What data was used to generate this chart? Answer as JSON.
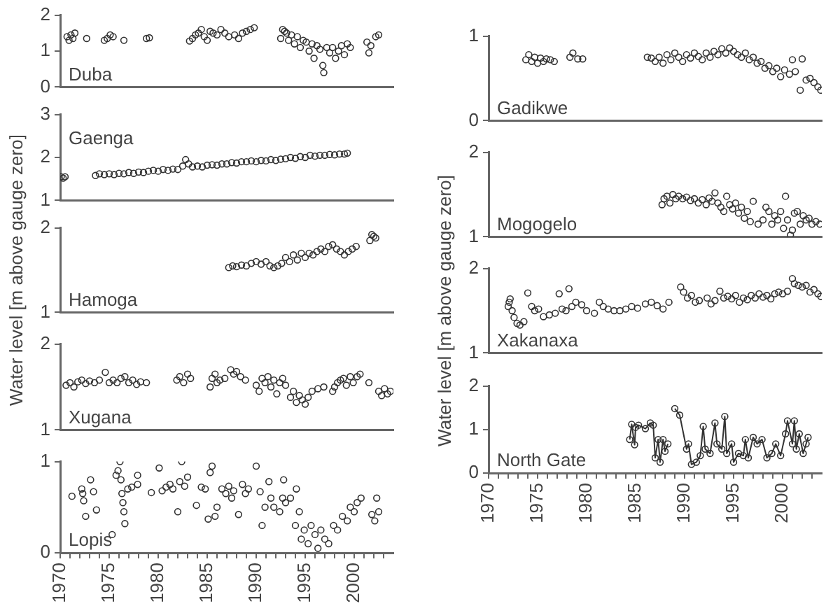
{
  "chart_data": [
    {
      "type": "scatter",
      "title": "Duba",
      "marker": "circle",
      "color": "#333333",
      "xlim": [
        1970,
        2004
      ],
      "ylim": [
        0,
        2
      ],
      "yticks": [
        0,
        1,
        2
      ],
      "tick_labels": "y",
      "x": [
        1970.7,
        1970.9,
        1971.1,
        1971.3,
        1971.5,
        1972.7,
        1974.5,
        1974.8,
        1975.1,
        1975.4,
        1976.5,
        1978.8,
        1979.1,
        1983.2,
        1983.5,
        1983.8,
        1984.1,
        1984.4,
        1984.7,
        1985,
        1985.3,
        1985.6,
        1986,
        1986.4,
        1986.8,
        1987.2,
        1987.8,
        1988.2,
        1988.6,
        1989,
        1989.4,
        1989.8,
        1992.5,
        1992.7,
        1992.9,
        1993.1,
        1993.3,
        1993.6,
        1993.9,
        1994.2,
        1994.5,
        1994.8,
        1995.1,
        1995.4,
        1995.7,
        1995.9,
        1996.2,
        1996.5,
        1996.8,
        1996.9,
        1997.2,
        1997.5,
        1997.8,
        1998.1,
        1998.4,
        1998.7,
        1999,
        1999.3,
        1999.6,
        2001.3,
        2001.5,
        2001.7,
        2002.2,
        2002.5
      ],
      "values": [
        1.4,
        1.3,
        1.45,
        1.35,
        1.5,
        1.35,
        1.3,
        1.35,
        1.45,
        1.4,
        1.3,
        1.35,
        1.37,
        1.28,
        1.35,
        1.45,
        1.5,
        1.6,
        1.4,
        1.3,
        1.55,
        1.5,
        1.45,
        1.6,
        1.5,
        1.4,
        1.45,
        1.35,
        1.5,
        1.55,
        1.6,
        1.65,
        1.35,
        1.6,
        1.55,
        1.5,
        1.3,
        1.45,
        1.2,
        1.4,
        1.1,
        1.3,
        1.25,
        1.0,
        1.2,
        0.8,
        1.15,
        1.05,
        0.6,
        0.4,
        1.1,
        0.95,
        1.1,
        0.8,
        1.0,
        1.15,
        0.9,
        1.2,
        1.1,
        1.25,
        0.95,
        1.15,
        1.4,
        1.45
      ]
    },
    {
      "type": "scatter",
      "title": "Gaenga",
      "marker": "circle",
      "color": "#333333",
      "xlim": [
        1970,
        2004
      ],
      "ylim": [
        1,
        3
      ],
      "yticks": [
        1,
        2,
        3
      ],
      "tick_labels": "y",
      "x": [
        1970.1,
        1970.3,
        1970.5,
        1973.6,
        1974,
        1974.5,
        1975,
        1975.5,
        1976,
        1976.5,
        1977,
        1977.5,
        1978,
        1978.5,
        1979,
        1979.5,
        1980,
        1980.5,
        1981,
        1981.5,
        1982,
        1982.5,
        1982.8,
        1983.1,
        1983.5,
        1984,
        1984.5,
        1985,
        1985.5,
        1986,
        1986.5,
        1987,
        1987.5,
        1988,
        1988.5,
        1989,
        1989.5,
        1990,
        1990.5,
        1991,
        1991.5,
        1992,
        1992.5,
        1993,
        1993.5,
        1994,
        1994.5,
        1995,
        1995.5,
        1996,
        1996.5,
        1997,
        1997.5,
        1998,
        1998.5,
        1999,
        1999.3
      ],
      "values": [
        1.55,
        1.52,
        1.55,
        1.58,
        1.62,
        1.6,
        1.62,
        1.6,
        1.63,
        1.62,
        1.65,
        1.63,
        1.66,
        1.65,
        1.68,
        1.7,
        1.68,
        1.72,
        1.7,
        1.73,
        1.72,
        1.8,
        1.95,
        1.85,
        1.78,
        1.8,
        1.78,
        1.82,
        1.83,
        1.82,
        1.85,
        1.85,
        1.88,
        1.87,
        1.9,
        1.9,
        1.92,
        1.9,
        1.93,
        1.92,
        1.95,
        1.93,
        1.96,
        1.97,
        2.0,
        1.98,
        2.02,
        2.0,
        2.05,
        2.03,
        2.05,
        2.05,
        2.07,
        2.06,
        2.08,
        2.08,
        2.1
      ]
    },
    {
      "type": "scatter",
      "title": "Hamoga",
      "ylabel": "Water level [m above gauge zero]",
      "marker": "circle",
      "color": "#333333",
      "xlim": [
        1970,
        2004
      ],
      "ylim": [
        1,
        2
      ],
      "yticks": [
        1,
        2
      ],
      "tick_labels": "y",
      "x": [
        1987.2,
        1987.6,
        1988,
        1988.5,
        1989,
        1989.5,
        1990,
        1990.5,
        1991,
        1991.4,
        1991.8,
        1992.2,
        1992.6,
        1993,
        1993.4,
        1993.8,
        1994.2,
        1994.6,
        1995,
        1995.4,
        1995.8,
        1996.2,
        1996.6,
        1997,
        1997.4,
        1997.8,
        1998.2,
        1998.6,
        1999,
        1999.4,
        1999.8,
        2000.2,
        2001.6,
        2001.8,
        2002,
        2002.2
      ],
      "values": [
        1.53,
        1.55,
        1.54,
        1.56,
        1.55,
        1.58,
        1.6,
        1.57,
        1.6,
        1.55,
        1.53,
        1.55,
        1.58,
        1.65,
        1.6,
        1.68,
        1.62,
        1.7,
        1.65,
        1.7,
        1.68,
        1.72,
        1.75,
        1.72,
        1.78,
        1.8,
        1.75,
        1.72,
        1.68,
        1.72,
        1.75,
        1.78,
        1.85,
        1.92,
        1.9,
        1.88
      ]
    },
    {
      "type": "scatter",
      "title": "Xugana",
      "marker": "circle",
      "color": "#333333",
      "xlim": [
        1970,
        2004
      ],
      "ylim": [
        1,
        2
      ],
      "yticks": [
        1,
        2
      ],
      "tick_labels": "y",
      "x": [
        1970.6,
        1971,
        1971.4,
        1971.8,
        1972.2,
        1972.6,
        1973,
        1973.5,
        1974,
        1974.6,
        1975,
        1975.4,
        1975.8,
        1976.2,
        1976.6,
        1977,
        1977.4,
        1977.8,
        1978.2,
        1978.8,
        1981.9,
        1982.2,
        1982.6,
        1983,
        1983.3,
        1985.3,
        1985.5,
        1985.8,
        1986,
        1986.3,
        1986.8,
        1987.4,
        1987.7,
        1988,
        1988.4,
        1988.9,
        1990,
        1990.3,
        1990.6,
        1990.9,
        1991.2,
        1991.5,
        1991.8,
        1992.1,
        1992.4,
        1992.7,
        1993,
        1993.5,
        1993.8,
        1994.1,
        1994.4,
        1994.7,
        1995,
        1995.3,
        1995.7,
        1996.3,
        1996.9,
        1997.8,
        1998,
        1998.3,
        1998.6,
        1998.9,
        1999.2,
        1999.6,
        1999.9,
        2000.3,
        2000.6,
        2001.5,
        2002.5,
        2002.8,
        2003.1,
        2003.4,
        2003.7
      ],
      "values": [
        1.52,
        1.55,
        1.5,
        1.56,
        1.58,
        1.54,
        1.57,
        1.55,
        1.58,
        1.67,
        1.55,
        1.58,
        1.55,
        1.6,
        1.62,
        1.55,
        1.58,
        1.53,
        1.56,
        1.55,
        1.58,
        1.62,
        1.55,
        1.65,
        1.6,
        1.5,
        1.6,
        1.65,
        1.55,
        1.58,
        1.6,
        1.7,
        1.65,
        1.68,
        1.62,
        1.58,
        1.52,
        1.45,
        1.6,
        1.55,
        1.62,
        1.5,
        1.58,
        1.42,
        1.55,
        1.6,
        1.52,
        1.38,
        1.45,
        1.32,
        1.4,
        1.35,
        1.3,
        1.38,
        1.45,
        1.48,
        1.5,
        1.45,
        1.5,
        1.55,
        1.58,
        1.6,
        1.52,
        1.62,
        1.55,
        1.62,
        1.65,
        1.55,
        1.45,
        1.4,
        1.48,
        1.42,
        1.45
      ]
    },
    {
      "type": "scatter",
      "title": "Lopis",
      "marker": "circle",
      "color": "#333333",
      "xlim": [
        1970,
        2004
      ],
      "ylim": [
        0,
        1
      ],
      "yticks": [
        0,
        1
      ],
      "xticks": [
        1970,
        {
          "value": 1971,
          "label": null
        },
        {
          "value": 1972,
          "label": null
        },
        {
          "value": 1973,
          "label": null
        },
        {
          "value": 1974,
          "label": null
        },
        1975,
        {
          "value": 1976,
          "label": null
        },
        {
          "value": 1977,
          "label": null
        },
        {
          "value": 1978,
          "label": null
        },
        {
          "value": 1979,
          "label": null
        },
        1980,
        {
          "value": 1981,
          "label": null
        },
        {
          "value": 1982,
          "label": null
        },
        {
          "value": 1983,
          "label": null
        },
        {
          "value": 1984,
          "label": null
        },
        1985,
        {
          "value": 1986,
          "label": null
        },
        {
          "value": 1987,
          "label": null
        },
        {
          "value": 1988,
          "label": null
        },
        {
          "value": 1989,
          "label": null
        },
        1990,
        {
          "value": 1991,
          "label": null
        },
        {
          "value": 1992,
          "label": null
        },
        {
          "value": 1993,
          "label": null
        },
        {
          "value": 1994,
          "label": null
        },
        1995,
        {
          "value": 1996,
          "label": null
        },
        {
          "value": 1997,
          "label": null
        },
        {
          "value": 1998,
          "label": null
        },
        {
          "value": 1999,
          "label": null
        },
        2000,
        {
          "value": 2001,
          "label": null
        },
        {
          "value": 2002,
          "label": null
        },
        {
          "value": 2003,
          "label": null
        }
      ],
      "x": [
        1971.2,
        1972.2,
        1972.3,
        1972.4,
        1972.6,
        1973.1,
        1973.4,
        1973.7,
        1975.3,
        1975.7,
        1975.9,
        1976.1,
        1976.2,
        1976.3,
        1976.4,
        1976.5,
        1976.6,
        1976.9,
        1977.3,
        1977.9,
        1977.9,
        1979.3,
        1980.1,
        1980.4,
        1980.8,
        1981.2,
        1981.5,
        1982,
        1982.2,
        1982.4,
        1982.7,
        1983,
        1983.9,
        1984.4,
        1984.8,
        1985.1,
        1985.3,
        1985.5,
        1985.8,
        1986,
        1986.5,
        1986.9,
        1987.2,
        1987.5,
        1987.7,
        1988.2,
        1988.6,
        1988.9,
        1989.2,
        1990,
        1990.4,
        1990.6,
        1990.9,
        1991.3,
        1991.5,
        1991.8,
        1992.4,
        1992.7,
        1992.8,
        1993,
        1993.5,
        1994,
        1994.1,
        1994.4,
        1994.6,
        1994.9,
        1995.3,
        1995.6,
        1996,
        1996.3,
        1996.6,
        1997,
        1997.4,
        1997.9,
        1998.3,
        1998.8,
        1999.3,
        1999.6,
        2000,
        2000.3,
        2000.7,
        2001.8,
        2002.1,
        2002.3,
        2002.5
      ],
      "values": [
        0.62,
        0.7,
        0.65,
        0.57,
        0.4,
        0.8,
        0.67,
        0.47,
        0.2,
        0.85,
        0.9,
        1.0,
        0.8,
        0.65,
        0.55,
        0.45,
        0.32,
        0.7,
        0.72,
        0.85,
        0.75,
        0.66,
        0.93,
        0.68,
        0.72,
        0.75,
        0.7,
        0.45,
        0.78,
        1.0,
        0.73,
        0.83,
        0.52,
        0.72,
        0.7,
        0.37,
        0.88,
        0.95,
        0.4,
        0.5,
        0.7,
        0.65,
        0.73,
        0.6,
        0.68,
        0.42,
        0.75,
        0.65,
        0.7,
        0.95,
        0.67,
        0.3,
        0.5,
        0.78,
        0.6,
        0.5,
        0.45,
        0.6,
        0.8,
        0.55,
        0.6,
        0.3,
        0.7,
        0.45,
        0.15,
        0.25,
        0.1,
        0.3,
        0.2,
        0.05,
        0.25,
        0.15,
        0.1,
        0.3,
        0.25,
        0.4,
        0.35,
        0.5,
        0.45,
        0.55,
        0.6,
        0.42,
        0.35,
        0.6,
        0.45
      ]
    },
    {
      "type": "scatter",
      "title": "Gadikwe",
      "marker": "circle",
      "color": "#333333",
      "xlim": [
        1970,
        2004
      ],
      "ylim": [
        0,
        1
      ],
      "yticks": [
        0,
        1
      ],
      "tick_labels": "y",
      "x": [
        1973.8,
        1974.1,
        1974.4,
        1974.7,
        1975,
        1975.3,
        1975.6,
        1975.9,
        1976.3,
        1976.7,
        1978.3,
        1978.6,
        1979.1,
        1979.6,
        1986.2,
        1986.6,
        1987,
        1987.4,
        1987.8,
        1988.2,
        1988.6,
        1989,
        1989.4,
        1989.8,
        1990.2,
        1990.6,
        1991,
        1991.4,
        1991.8,
        1992.2,
        1992.6,
        1993,
        1993.4,
        1993.8,
        1994.2,
        1994.6,
        1995,
        1995.4,
        1995.8,
        1996.2,
        1996.6,
        1997,
        1997.4,
        1997.8,
        1998.2,
        1998.6,
        1999,
        1999.4,
        1999.8,
        2000.2,
        2000.7,
        2001,
        2001.3,
        2001.8,
        2002,
        2002.4,
        2002.8,
        2003.2,
        2003.6,
        2003.9
      ],
      "values": [
        0.72,
        0.78,
        0.7,
        0.75,
        0.68,
        0.74,
        0.7,
        0.73,
        0.72,
        0.7,
        0.75,
        0.8,
        0.73,
        0.73,
        0.75,
        0.74,
        0.7,
        0.75,
        0.68,
        0.78,
        0.72,
        0.8,
        0.75,
        0.7,
        0.78,
        0.74,
        0.8,
        0.76,
        0.72,
        0.8,
        0.75,
        0.82,
        0.78,
        0.85,
        0.8,
        0.86,
        0.82,
        0.78,
        0.75,
        0.8,
        0.72,
        0.75,
        0.68,
        0.7,
        0.62,
        0.65,
        0.58,
        0.62,
        0.52,
        0.6,
        0.55,
        0.72,
        0.58,
        0.36,
        0.73,
        0.48,
        0.5,
        0.45,
        0.4,
        0.36
      ]
    },
    {
      "type": "scatter",
      "title": "Mogogelo",
      "marker": "circle",
      "color": "#333333",
      "xlim": [
        1970,
        2004
      ],
      "ylim": [
        1,
        2
      ],
      "yticks": [
        1,
        2
      ],
      "tick_labels": "y",
      "x": [
        1987.7,
        1987.9,
        1988.2,
        1988.5,
        1988.8,
        1989.1,
        1989.4,
        1989.8,
        1990.2,
        1990.6,
        1991,
        1991.4,
        1991.8,
        1992.2,
        1992.5,
        1992.8,
        1993.1,
        1993.4,
        1993.7,
        1994,
        1994.3,
        1994.6,
        1994.9,
        1995.2,
        1995.5,
        1995.8,
        1996.1,
        1996.4,
        1996.7,
        1997,
        1997.5,
        1998,
        1998.3,
        1998.6,
        1998.9,
        1999.2,
        1999.5,
        1999.8,
        2000.1,
        2000.3,
        2000.5,
        2000.8,
        2001,
        2001.2,
        2001.5,
        2001.8,
        2002.1,
        2002.4,
        2002.7,
        2003,
        2003.4,
        2003.8
      ],
      "values": [
        1.38,
        1.45,
        1.48,
        1.4,
        1.5,
        1.45,
        1.48,
        1.45,
        1.47,
        1.43,
        1.45,
        1.4,
        1.44,
        1.38,
        1.46,
        1.42,
        1.52,
        1.4,
        1.35,
        1.3,
        1.48,
        1.38,
        1.33,
        1.4,
        1.28,
        1.35,
        1.22,
        1.3,
        1.18,
        1.42,
        1.15,
        1.2,
        1.35,
        1.3,
        1.15,
        1.25,
        1.2,
        1.3,
        1.1,
        1.48,
        1.2,
        1.02,
        1.08,
        1.28,
        1.3,
        1.15,
        1.25,
        1.2,
        1.22,
        1.15,
        1.18,
        1.15
      ]
    },
    {
      "type": "scatter",
      "title": "Xakanaxa",
      "ylabel": "Water level [m above gauge zero]",
      "marker": "circle",
      "color": "#333333",
      "xlim": [
        1970,
        2004
      ],
      "ylim": [
        1,
        2
      ],
      "yticks": [
        1,
        2
      ],
      "tick_labels": "y",
      "x": [
        1972,
        1972.1,
        1972.2,
        1972.4,
        1972.6,
        1972.9,
        1973.2,
        1973.6,
        1974,
        1974.4,
        1974.7,
        1975.1,
        1975.6,
        1976.2,
        1976.8,
        1977.2,
        1977.5,
        1977.9,
        1978.2,
        1978.5,
        1978.9,
        1979.5,
        1980,
        1980.8,
        1981.3,
        1981.7,
        1982.2,
        1982.8,
        1983.4,
        1984,
        1984.6,
        1985.2,
        1986,
        1986.6,
        1987.2,
        1987.8,
        1988.4,
        1989.6,
        1989.9,
        1990.3,
        1990.7,
        1991.1,
        1991.5,
        1992.3,
        1992.7,
        1993.1,
        1993.6,
        1994,
        1994.4,
        1994.8,
        1995.2,
        1995.6,
        1996,
        1996.4,
        1996.8,
        1997.2,
        1997.6,
        1998,
        1998.4,
        1998.8,
        1999.2,
        1999.6,
        2000,
        2000.5,
        2001,
        2001.2,
        2001.6,
        2002,
        2002.4,
        2002.8,
        2003.2,
        2003.6,
        2003.9
      ],
      "values": [
        1.55,
        1.6,
        1.64,
        1.5,
        1.42,
        1.35,
        1.33,
        1.37,
        1.71,
        1.55,
        1.5,
        1.52,
        1.43,
        1.45,
        1.47,
        1.7,
        1.52,
        1.5,
        1.76,
        1.55,
        1.6,
        1.57,
        1.5,
        1.47,
        1.6,
        1.55,
        1.52,
        1.5,
        1.5,
        1.52,
        1.55,
        1.53,
        1.58,
        1.6,
        1.56,
        1.52,
        1.6,
        1.78,
        1.72,
        1.65,
        1.68,
        1.6,
        1.62,
        1.65,
        1.58,
        1.62,
        1.73,
        1.65,
        1.67,
        1.64,
        1.68,
        1.6,
        1.65,
        1.63,
        1.68,
        1.65,
        1.7,
        1.66,
        1.68,
        1.64,
        1.7,
        1.72,
        1.7,
        1.73,
        1.88,
        1.82,
        1.8,
        1.78,
        1.8,
        1.72,
        1.75,
        1.7,
        1.67
      ]
    },
    {
      "type": "line",
      "title": "North Gate",
      "marker": "circle",
      "color": "#333333",
      "xlim": [
        1970,
        2004
      ],
      "ylim": [
        0,
        2
      ],
      "yticks": [
        0,
        1,
        2
      ],
      "xticks": [
        1970,
        {
          "value": 1971,
          "label": null
        },
        {
          "value": 1972,
          "label": null
        },
        {
          "value": 1973,
          "label": null
        },
        {
          "value": 1974,
          "label": null
        },
        1975,
        {
          "value": 1976,
          "label": null
        },
        {
          "value": 1977,
          "label": null
        },
        {
          "value": 1978,
          "label": null
        },
        {
          "value": 1979,
          "label": null
        },
        1980,
        {
          "value": 1981,
          "label": null
        },
        {
          "value": 1982,
          "label": null
        },
        {
          "value": 1983,
          "label": null
        },
        {
          "value": 1984,
          "label": null
        },
        1985,
        {
          "value": 1986,
          "label": null
        },
        {
          "value": 1987,
          "label": null
        },
        {
          "value": 1988,
          "label": null
        },
        {
          "value": 1989,
          "label": null
        },
        1990,
        {
          "value": 1991,
          "label": null
        },
        {
          "value": 1992,
          "label": null
        },
        {
          "value": 1993,
          "label": null
        },
        {
          "value": 1994,
          "label": null
        },
        1995,
        {
          "value": 1996,
          "label": null
        },
        {
          "value": 1997,
          "label": null
        },
        {
          "value": 1998,
          "label": null
        },
        {
          "value": 1999,
          "label": null
        },
        2000,
        {
          "value": 2001,
          "label": null
        },
        {
          "value": 2002,
          "label": null
        },
        {
          "value": 2003,
          "label": null
        }
      ],
      "x": [
        1984.4,
        1984.6,
        1984.9,
        1985,
        1985.3,
        1986,
        1986.5,
        1986.8,
        1987,
        1987.3,
        1987.5,
        1987.8,
        1988,
        1988.3,
        1988.6,
        1989,
        1989.5,
        1990.2,
        1990.4,
        1990.7,
        1991.2,
        1991.6,
        1991.9,
        1992.1,
        1992.6,
        1993.1,
        1993.3,
        1993.8,
        1994.1,
        1994.3,
        1994.8,
        1995,
        1995.5,
        1996,
        1996.2,
        1996.5,
        1997,
        1997.4,
        1997.9,
        1998.4,
        1998.9,
        1999.3,
        1999.8,
        2000.3,
        2000.5,
        2001,
        2001.2,
        2001.4,
        2001.7,
        2002.1,
        2002.4,
        2002.6
      ],
      "values": [
        0.77,
        1.12,
        0.65,
        1.05,
        1.1,
        1.02,
        1.15,
        1.1,
        0.35,
        0.77,
        0.25,
        0.77,
        0.5,
        0.67,
        null,
        1.48,
        1.33,
        0.55,
        0.67,
        0.2,
        0.25,
        0.4,
        1.07,
        0.55,
        0.45,
        1.15,
        0.67,
        0.55,
        1.3,
        0.45,
        0.67,
        0.25,
        0.45,
        0.4,
        0.77,
        0.35,
        0.82,
        0.67,
        0.77,
        0.35,
        0.45,
        0.67,
        0.4,
        0.9,
        1.2,
        0.67,
        1.2,
        0.55,
        0.9,
        0.45,
        0.67,
        0.82
      ]
    }
  ]
}
